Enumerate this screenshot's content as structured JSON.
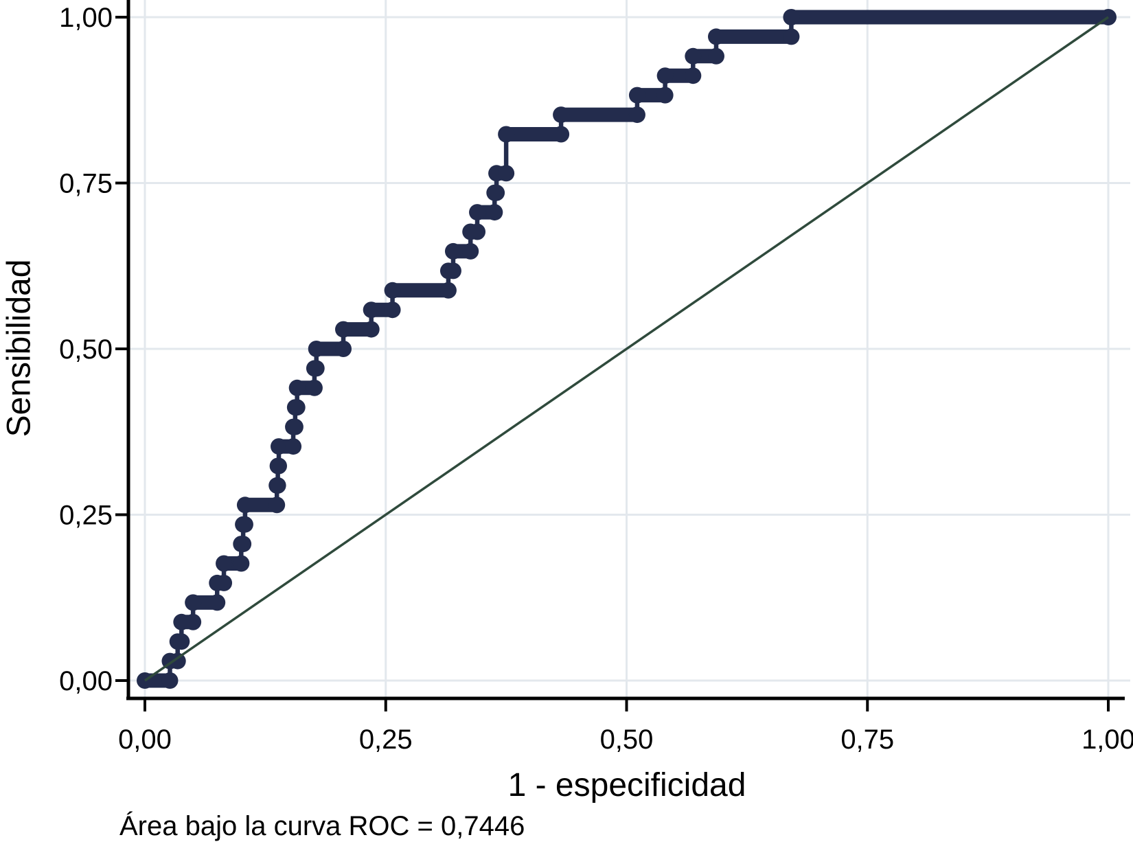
{
  "chart_data": {
    "type": "line",
    "subtype": "roc-step-curve",
    "title": "",
    "xlabel": "1 - especificidad",
    "ylabel": "Sensibilidad",
    "annotation": "Área bajo la curva ROC = 0,7446",
    "auc_value": "0,7446",
    "xlim": [
      0,
      1
    ],
    "ylim": [
      0,
      1
    ],
    "grid": true,
    "legend_position": "none",
    "x_tick_labels": [
      "0,00",
      "0,25",
      "0,50",
      "0,75",
      "1,00"
    ],
    "y_tick_labels": [
      "0,00",
      "0,25",
      "0,50",
      "0,75",
      "1,00"
    ],
    "tick_values": [
      0,
      0.25,
      0.5,
      0.75,
      1
    ],
    "series": [
      {
        "name": "ROC curve",
        "style": "step-with-markers",
        "color": "#232C4D",
        "points": [
          [
            0.0,
            0.0
          ],
          [
            0.026,
            0.0
          ],
          [
            0.026,
            0.0294
          ],
          [
            0.034,
            0.0294
          ],
          [
            0.034,
            0.0588
          ],
          [
            0.038,
            0.0588
          ],
          [
            0.038,
            0.0882
          ],
          [
            0.05,
            0.0882
          ],
          [
            0.05,
            0.1176
          ],
          [
            0.075,
            0.1176
          ],
          [
            0.075,
            0.1471
          ],
          [
            0.082,
            0.1471
          ],
          [
            0.082,
            0.1765
          ],
          [
            0.1,
            0.1765
          ],
          [
            0.1,
            0.2059
          ],
          [
            0.102,
            0.2059
          ],
          [
            0.102,
            0.2353
          ],
          [
            0.104,
            0.2353
          ],
          [
            0.104,
            0.2647
          ],
          [
            0.137,
            0.2647
          ],
          [
            0.137,
            0.2941
          ],
          [
            0.138,
            0.2941
          ],
          [
            0.138,
            0.3235
          ],
          [
            0.139,
            0.3235
          ],
          [
            0.139,
            0.3529
          ],
          [
            0.154,
            0.3529
          ],
          [
            0.154,
            0.3824
          ],
          [
            0.156,
            0.3824
          ],
          [
            0.156,
            0.4118
          ],
          [
            0.158,
            0.4118
          ],
          [
            0.158,
            0.4412
          ],
          [
            0.176,
            0.4412
          ],
          [
            0.176,
            0.4706
          ],
          [
            0.178,
            0.4706
          ],
          [
            0.178,
            0.5
          ],
          [
            0.206,
            0.5
          ],
          [
            0.206,
            0.5294
          ],
          [
            0.235,
            0.5294
          ],
          [
            0.235,
            0.5588
          ],
          [
            0.257,
            0.5588
          ],
          [
            0.257,
            0.5882
          ],
          [
            0.315,
            0.5882
          ],
          [
            0.315,
            0.6176
          ],
          [
            0.32,
            0.6176
          ],
          [
            0.32,
            0.6471
          ],
          [
            0.338,
            0.6471
          ],
          [
            0.338,
            0.6765
          ],
          [
            0.345,
            0.6765
          ],
          [
            0.345,
            0.7059
          ],
          [
            0.363,
            0.7059
          ],
          [
            0.363,
            0.7353
          ],
          [
            0.365,
            0.7353
          ],
          [
            0.365,
            0.7647
          ],
          [
            0.375,
            0.7647
          ],
          [
            0.375,
            0.8235
          ],
          [
            0.432,
            0.8235
          ],
          [
            0.432,
            0.8529
          ],
          [
            0.511,
            0.8529
          ],
          [
            0.511,
            0.8824
          ],
          [
            0.54,
            0.8824
          ],
          [
            0.54,
            0.9118
          ],
          [
            0.569,
            0.9118
          ],
          [
            0.569,
            0.9412
          ],
          [
            0.593,
            0.9412
          ],
          [
            0.593,
            0.9706
          ],
          [
            0.671,
            0.9706
          ],
          [
            0.671,
            1.0
          ],
          [
            1.0,
            1.0
          ]
        ]
      },
      {
        "name": "reference diagonal",
        "style": "thin-line",
        "color": "#2F4A3C",
        "points": [
          [
            0,
            0
          ],
          [
            1,
            1
          ]
        ]
      }
    ]
  },
  "colors": {
    "background": "#ffffff",
    "grid": "#E3E8ED",
    "axis": "#000000",
    "curve": "#232C4D",
    "diagonal": "#2F4A3C"
  }
}
